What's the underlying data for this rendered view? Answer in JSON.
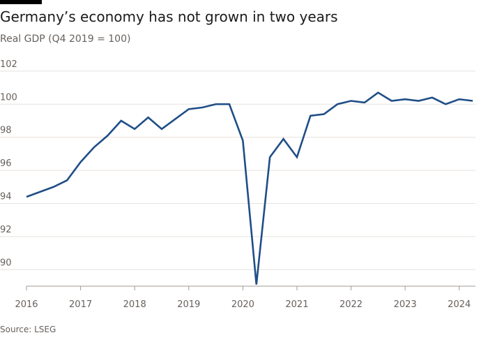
{
  "title": "Germany’s economy has not grown in two years",
  "subtitle": "Real GDP (Q4 2019 = 100)",
  "source": "Source: LSEG",
  "colors": {
    "line": "#1f4e87",
    "grid": "#e6e1dc",
    "axis": "#a09a94",
    "text": "#66605c",
    "title": "#1a1a1a",
    "topbar": "#000000"
  },
  "chart_data": {
    "type": "line",
    "title": "Germany’s economy has not grown in two years",
    "subtitle": "Real GDP (Q4 2019 = 100)",
    "xlabel": "",
    "ylabel": "",
    "ylim": [
      89,
      102.5
    ],
    "xlim": [
      2016,
      2024.3
    ],
    "grid": true,
    "y_ticks": [
      90,
      92,
      94,
      96,
      98,
      100,
      102
    ],
    "x_ticks": [
      2016,
      2017,
      2018,
      2019,
      2020,
      2021,
      2022,
      2023,
      2024
    ],
    "x_tick_labels": [
      "2016",
      "2017",
      "2018",
      "2019",
      "2020",
      "2021",
      "2022",
      "2023",
      "2024"
    ],
    "series": [
      {
        "x": [
          2016.0,
          2016.25,
          2016.5,
          2016.75,
          2017.0,
          2017.25,
          2017.5,
          2017.75,
          2018.0,
          2018.25,
          2018.5,
          2018.75,
          2019.0,
          2019.25,
          2019.5,
          2019.75,
          2020.0,
          2020.25,
          2020.5,
          2020.75,
          2021.0,
          2021.25,
          2021.5,
          2021.75,
          2022.0,
          2022.25,
          2022.5,
          2022.75,
          2023.0,
          2023.25,
          2023.5,
          2023.75,
          2024.0,
          2024.25
        ],
        "values": [
          94.4,
          94.7,
          95.0,
          95.4,
          96.5,
          97.4,
          98.1,
          99.0,
          98.5,
          99.2,
          98.5,
          99.1,
          99.7,
          99.8,
          100.0,
          100.0,
          97.8,
          89.1,
          96.8,
          97.9,
          96.8,
          99.3,
          99.4,
          100.0,
          100.2,
          100.1,
          100.7,
          100.2,
          100.3,
          100.2,
          100.4,
          100.0,
          100.3,
          100.2
        ]
      }
    ]
  }
}
